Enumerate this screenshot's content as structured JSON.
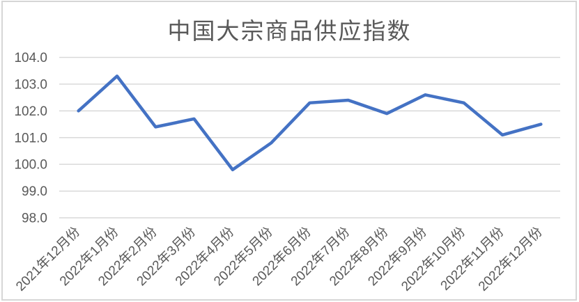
{
  "chart_data": {
    "type": "line",
    "title": "中国大宗商品供应指数",
    "categories": [
      "2021年12月份",
      "2022年1月份",
      "2022年2月份",
      "2022年3月份",
      "2022年4月份",
      "2022年5月份",
      "2022年6月份",
      "2022年7月份",
      "2022年8月份",
      "2022年9月份",
      "2022年10月份",
      "2022年11月份",
      "2022年12月份"
    ],
    "values": [
      102.0,
      103.3,
      101.4,
      101.7,
      99.8,
      100.8,
      102.3,
      102.4,
      101.9,
      102.6,
      102.3,
      101.1,
      101.5
    ],
    "xlabel": "",
    "ylabel": "",
    "ylim": [
      98.0,
      104.0
    ],
    "ytick_step": 1.0,
    "ytick_labels": [
      "98.0",
      "99.0",
      "100.0",
      "101.0",
      "102.0",
      "103.0",
      "104.0"
    ],
    "grid": "horizontal",
    "legend": "none",
    "x_label_rotation_deg": -45,
    "colors": {
      "line": "#4472C4",
      "gridline": "#d9d9d9",
      "axis_text": "#595959",
      "title_text": "#595959",
      "frame_border": "#d6d6d6",
      "background": "#ffffff"
    }
  }
}
